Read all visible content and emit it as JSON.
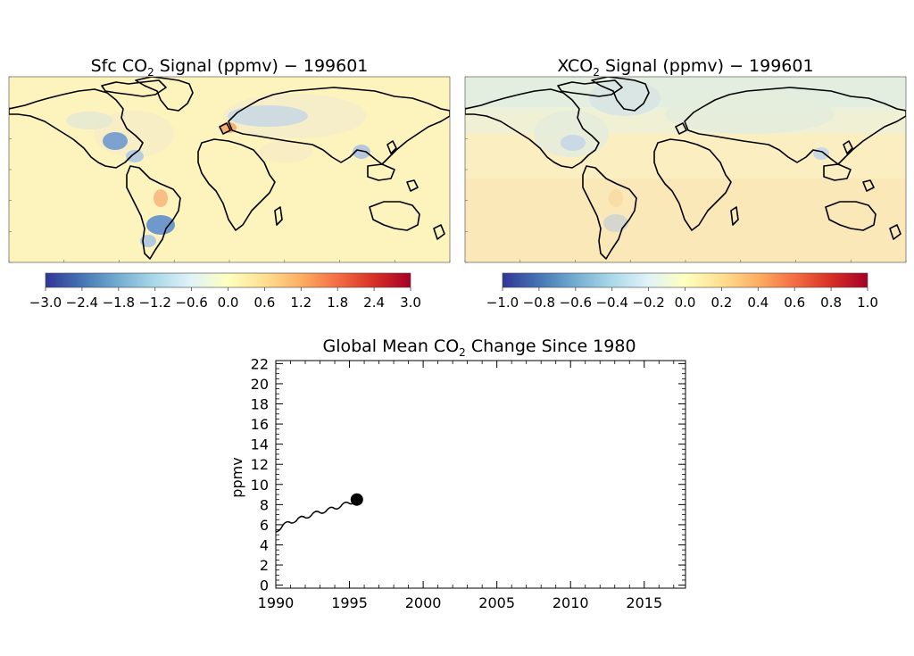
{
  "figure": {
    "panel_left": {
      "title_pre": "Sfc CO",
      "title_sub": "2",
      "title_post": " Signal (ppmv) − 199601",
      "colorbar_ticks": [
        "−3.0",
        "−2.4",
        "−1.8",
        "−1.2",
        "−0.6",
        "0.0",
        "0.6",
        "1.2",
        "1.8",
        "2.4",
        "3.0"
      ]
    },
    "panel_right": {
      "title_pre": "XCO",
      "title_sub": "2",
      "title_post": " Signal (ppmv) − 199601",
      "colorbar_ticks": [
        "−1.0",
        "−0.8",
        "−0.6",
        "−0.4",
        "−0.2",
        "0.0",
        "0.2",
        "0.4",
        "0.6",
        "0.8",
        "1.0"
      ]
    },
    "colormap": [
      "#313695",
      "#4575b4",
      "#74add1",
      "#abd9e9",
      "#e0f3f8",
      "#ffffbf",
      "#fee090",
      "#fdae61",
      "#f46d43",
      "#d73027",
      "#a50026"
    ]
  },
  "chart_data": [
    {
      "type": "heatmap",
      "title": "Sfc CO2 Signal (ppmv) − 199601",
      "colorbar_range": [
        -3.0,
        3.0
      ],
      "colorbar_ticks": [
        -3.0,
        -2.4,
        -1.8,
        -1.2,
        -0.6,
        0.0,
        0.6,
        1.2,
        1.8,
        2.4,
        3.0
      ]
    },
    {
      "type": "heatmap",
      "title": "XCO2 Signal (ppmv) − 199601",
      "colorbar_range": [
        -1.0,
        1.0
      ],
      "colorbar_ticks": [
        -1.0,
        -0.8,
        -0.6,
        -0.4,
        -0.2,
        0.0,
        0.2,
        0.4,
        0.6,
        0.8,
        1.0
      ]
    },
    {
      "type": "line",
      "title_pre": "Global Mean CO",
      "title_sub": "2",
      "title_post": " Change Since 1980",
      "title": "Global Mean CO2 Change Since 1980",
      "ylabel": "ppmv",
      "xlabel": "",
      "xlim": [
        1990,
        2017.8
      ],
      "ylim": [
        -0.3,
        22.3
      ],
      "xticks": [
        1990,
        1995,
        2000,
        2005,
        2010,
        2015
      ],
      "yticks": [
        0,
        2,
        4,
        6,
        8,
        10,
        12,
        14,
        16,
        18,
        20,
        22
      ],
      "grid": false,
      "series": [
        {
          "x": [
            1990.0,
            1990.5,
            1991.0,
            1991.5,
            1992.0,
            1992.5,
            1993.0,
            1993.5,
            1994.0,
            1994.5,
            1995.0,
            1995.5
          ],
          "y": [
            5.3,
            6.0,
            6.2,
            6.6,
            6.7,
            7.1,
            7.2,
            7.5,
            7.6,
            8.0,
            8.1,
            8.5
          ]
        }
      ],
      "marker": {
        "x": 1995.5,
        "y": 8.5
      }
    }
  ]
}
